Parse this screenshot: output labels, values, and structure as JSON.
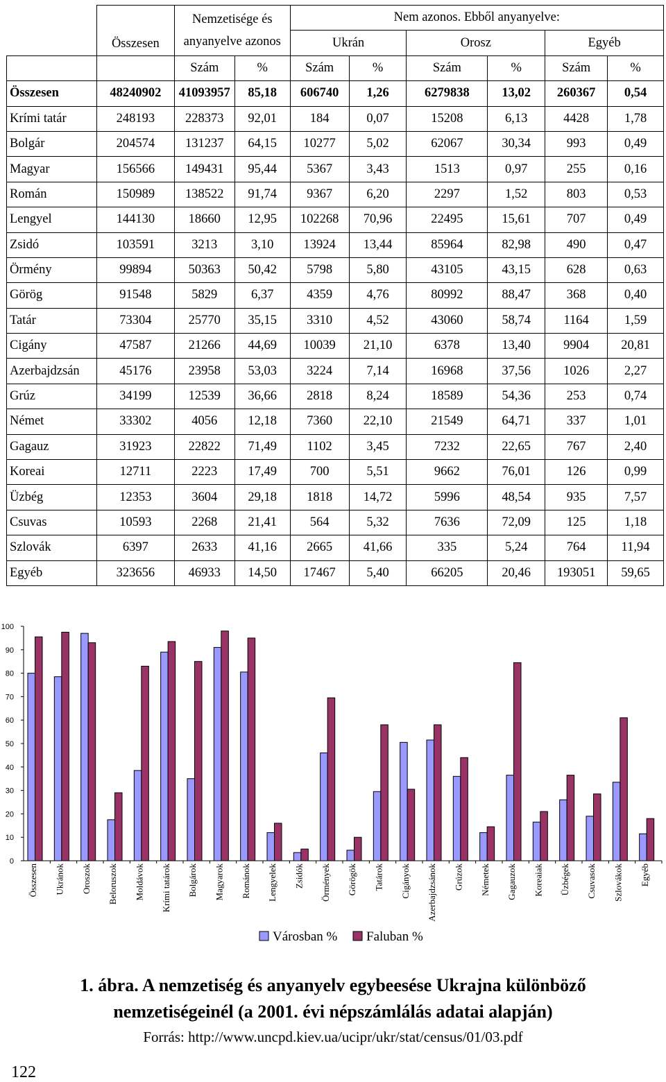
{
  "table": {
    "headers": {
      "osszesen": "Összesen",
      "nemzetisege": "Nemzetisége és anyanyelve azonos",
      "nem_azonos": "Nem azonos. Ebből anyanyelve:",
      "ukran": "Ukrán",
      "orosz": "Orosz",
      "egyeb": "Egyéb",
      "szam": "Szám",
      "pct": "%"
    },
    "rows": [
      [
        "Összesen",
        "48240902",
        "41093957",
        "85,18",
        "606740",
        "1,26",
        "6279838",
        "13,02",
        "260367",
        "0,54"
      ],
      [
        "Krími tatár",
        "248193",
        "228373",
        "92,01",
        "184",
        "0,07",
        "15208",
        "6,13",
        "4428",
        "1,78"
      ],
      [
        "Bolgár",
        "204574",
        "131237",
        "64,15",
        "10277",
        "5,02",
        "62067",
        "30,34",
        "993",
        "0,49"
      ],
      [
        "Magyar",
        "156566",
        "149431",
        "95,44",
        "5367",
        "3,43",
        "1513",
        "0,97",
        "255",
        "0,16"
      ],
      [
        "Román",
        "150989",
        "138522",
        "91,74",
        "9367",
        "6,20",
        "2297",
        "1,52",
        "803",
        "0,53"
      ],
      [
        "Lengyel",
        "144130",
        "18660",
        "12,95",
        "102268",
        "70,96",
        "22495",
        "15,61",
        "707",
        "0,49"
      ],
      [
        "Zsidó",
        "103591",
        "3213",
        "3,10",
        "13924",
        "13,44",
        "85964",
        "82,98",
        "490",
        "0,47"
      ],
      [
        "Örmény",
        "99894",
        "50363",
        "50,42",
        "5798",
        "5,80",
        "43105",
        "43,15",
        "628",
        "0,63"
      ],
      [
        "Görög",
        "91548",
        "5829",
        "6,37",
        "4359",
        "4,76",
        "80992",
        "88,47",
        "368",
        "0,40"
      ],
      [
        "Tatár",
        "73304",
        "25770",
        "35,15",
        "3310",
        "4,52",
        "43060",
        "58,74",
        "1164",
        "1,59"
      ],
      [
        "Cigány",
        "47587",
        "21266",
        "44,69",
        "10039",
        "21,10",
        "6378",
        "13,40",
        "9904",
        "20,81"
      ],
      [
        "Azerbajdzsán",
        "45176",
        "23958",
        "53,03",
        "3224",
        "7,14",
        "16968",
        "37,56",
        "1026",
        "2,27"
      ],
      [
        "Grúz",
        "34199",
        "12539",
        "36,66",
        "2818",
        "8,24",
        "18589",
        "54,36",
        "253",
        "0,74"
      ],
      [
        "Német",
        "33302",
        "4056",
        "12,18",
        "7360",
        "22,10",
        "21549",
        "64,71",
        "337",
        "1,01"
      ],
      [
        "Gagauz",
        "31923",
        "22822",
        "71,49",
        "1102",
        "3,45",
        "7232",
        "22,65",
        "767",
        "2,40"
      ],
      [
        "Koreai",
        "12711",
        "2223",
        "17,49",
        "700",
        "5,51",
        "9662",
        "76,01",
        "126",
        "0,99"
      ],
      [
        "Üzbég",
        "12353",
        "3604",
        "29,18",
        "1818",
        "14,72",
        "5996",
        "48,54",
        "935",
        "7,57"
      ],
      [
        "Csuvas",
        "10593",
        "2268",
        "21,41",
        "564",
        "5,32",
        "7636",
        "72,09",
        "125",
        "1,18"
      ],
      [
        "Szlovák",
        "6397",
        "2633",
        "41,16",
        "2665",
        "41,66",
        "335",
        "5,24",
        "764",
        "11,94"
      ],
      [
        "Egyéb",
        "323656",
        "46933",
        "14,50",
        "17467",
        "5,40",
        "66205",
        "20,46",
        "193051",
        "59,65"
      ]
    ]
  },
  "chart_data": {
    "type": "bar",
    "ylim": [
      0,
      100
    ],
    "yticks": [
      0,
      10,
      20,
      30,
      40,
      50,
      60,
      70,
      80,
      90,
      100
    ],
    "categories": [
      "Összesen",
      "Ukránok",
      "Oroszok",
      "Beloruszok",
      "Moldávok",
      "Krími tatárok",
      "Bolgárok",
      "Magyarok",
      "Románok",
      "Lengyelek",
      "Zsidók",
      "Örmények",
      "Görögök",
      "Tatárok",
      "Cigányok",
      "Azerbajdzsánok",
      "Grúzok",
      "Németek",
      "Gagauzok",
      "Koreaiak",
      "Üzbégek",
      "Csuvasok",
      "Szlovákok",
      "Egyéb"
    ],
    "series": [
      {
        "name": "Városban %",
        "color": "#9999ff",
        "values": [
          80,
          78.5,
          97,
          17.5,
          38.5,
          89,
          35,
          91,
          80.5,
          12,
          3.5,
          46,
          4.5,
          29.5,
          50.5,
          51.5,
          36,
          12,
          36.5,
          16.5,
          26,
          19,
          33.5,
          11.5
        ]
      },
      {
        "name": "Faluban %",
        "color": "#993366",
        "values": [
          95.5,
          97.5,
          93,
          29,
          83,
          93.5,
          85,
          98,
          95,
          16,
          5,
          69.5,
          10,
          58,
          30.5,
          58,
          44,
          14.5,
          84.5,
          21,
          36.5,
          28.5,
          61,
          18
        ]
      }
    ]
  },
  "caption": {
    "line1": "1. ábra. A nemzetiség és anyanyelv egybeesése Ukrajna különböző",
    "line2": "nemzetiségeinél (a 2001. évi népszámlálás adatai alapján)",
    "source": "Forrás: http://www.uncpd.kiev.ua/ucipr/ukr/stat/census/01/03.pdf"
  },
  "page_number": "122"
}
